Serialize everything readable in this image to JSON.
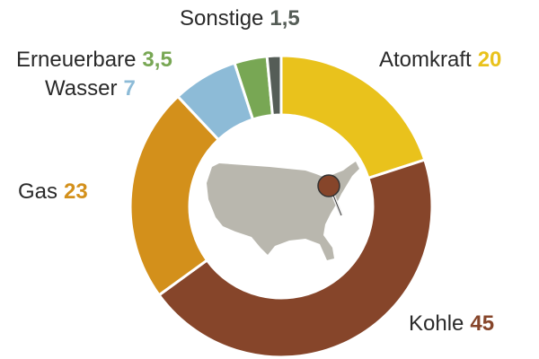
{
  "chart_data": {
    "type": "donut",
    "categories": [
      "Atomkraft",
      "Kohle",
      "Gas",
      "Wasser",
      "Erneuerbare",
      "Sonstige"
    ],
    "values": [
      20,
      45,
      23,
      7,
      3.5,
      1.5
    ],
    "value_labels": [
      "20",
      "45",
      "23",
      "7",
      "3,5",
      "1,5"
    ],
    "colors": [
      "#e9c21c",
      "#86452a",
      "#d3901b",
      "#8dbbd7",
      "#78a754",
      "#555d57"
    ]
  }
}
